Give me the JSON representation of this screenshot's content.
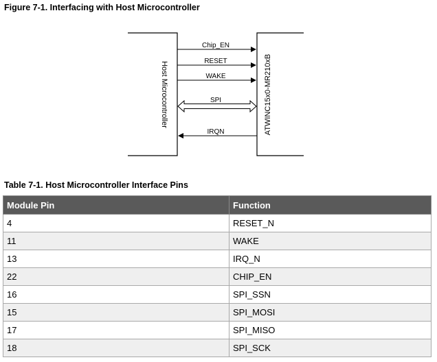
{
  "figure": {
    "caption": "Figure 7-1.  Interfacing with Host Microcontroller",
    "host_label": "Host Microcontroller",
    "device_label": "ATWINC15x0-MR210xB",
    "signals": [
      {
        "name": "Chip_EN",
        "direction": "host-to-device"
      },
      {
        "name": "RESET",
        "direction": "host-to-device"
      },
      {
        "name": "WAKE",
        "direction": "host-to-device"
      },
      {
        "name": "SPI",
        "direction": "bidirectional"
      },
      {
        "name": "IRQN",
        "direction": "device-to-host"
      }
    ]
  },
  "table": {
    "caption": "Table 7-1.  Host Microcontroller Interface Pins",
    "headers": [
      "Module Pin",
      "Function"
    ],
    "rows": [
      [
        "4",
        "RESET_N"
      ],
      [
        "11",
        "WAKE"
      ],
      [
        "13",
        "IRQ_N"
      ],
      [
        "22",
        "CHIP_EN"
      ],
      [
        "16",
        "SPI_SSN"
      ],
      [
        "15",
        "SPI_MOSI"
      ],
      [
        "17",
        "SPI_MISO"
      ],
      [
        "18",
        "SPI_SCK"
      ]
    ]
  }
}
